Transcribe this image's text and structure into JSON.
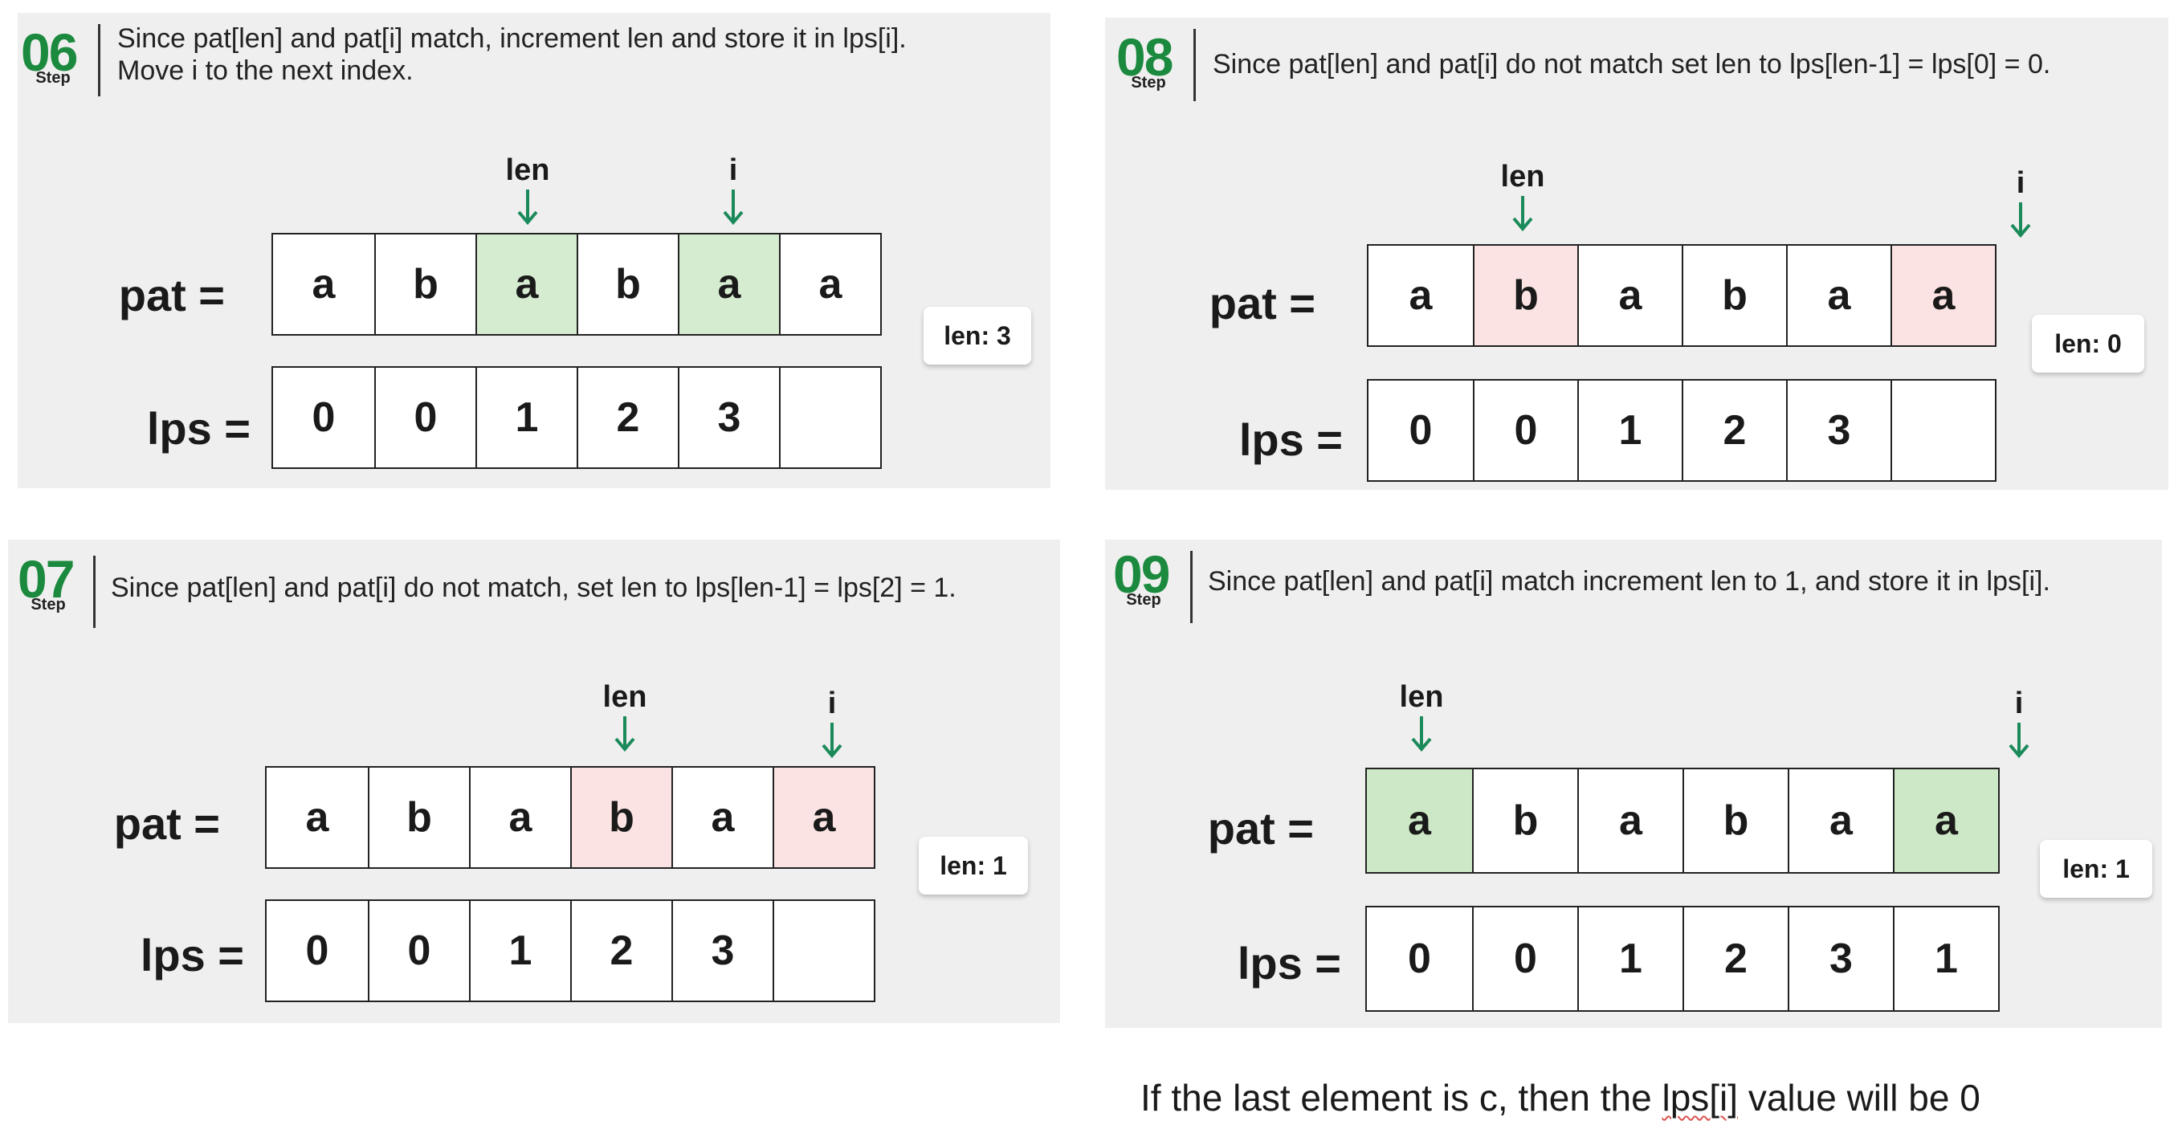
{
  "panels": {
    "p06": {
      "step_number": "06",
      "step_label": "Step",
      "description_lines": [
        "Since pat[len] and pat[i] match, increment len and store it in lps[i].",
        "Move i to the next index."
      ],
      "pat_label": "pat =",
      "lps_label": "lps =",
      "pat": [
        "a",
        "b",
        "a",
        "b",
        "a",
        "a"
      ],
      "pat_highlight": [
        "none",
        "none",
        "green",
        "none",
        "green",
        "none"
      ],
      "lps": [
        "0",
        "0",
        "1",
        "2",
        "3",
        ""
      ],
      "len_pointer": "len",
      "i_pointer": "i",
      "len_pointer_index": 2,
      "i_pointer_index": 4,
      "len_value": "len: 3"
    },
    "p07": {
      "step_number": "07",
      "step_label": "Step",
      "description_lines": [
        "Since pat[len] and pat[i] do not match, set len to lps[len-1] = lps[2] = 1."
      ],
      "pat_label": "pat =",
      "lps_label": "lps =",
      "pat": [
        "a",
        "b",
        "a",
        "b",
        "a",
        "a"
      ],
      "pat_highlight": [
        "none",
        "none",
        "none",
        "red",
        "none",
        "red"
      ],
      "lps": [
        "0",
        "0",
        "1",
        "2",
        "3",
        ""
      ],
      "len_pointer": "len",
      "i_pointer": "i",
      "len_pointer_index": 3,
      "i_pointer_index": 5,
      "len_value": "len: 1"
    },
    "p08": {
      "step_number": "08",
      "step_label": "Step",
      "description_lines": [
        "Since pat[len] and pat[i] do not match set len to lps[len-1] = lps[0] = 0."
      ],
      "pat_label": "pat =",
      "lps_label": "lps =",
      "pat": [
        "a",
        "b",
        "a",
        "b",
        "a",
        "a"
      ],
      "pat_highlight": [
        "none",
        "red",
        "none",
        "none",
        "none",
        "red"
      ],
      "lps": [
        "0",
        "0",
        "1",
        "2",
        "3",
        ""
      ],
      "len_pointer": "len",
      "i_pointer": "i",
      "len_pointer_index": 1,
      "i_pointer_index": 5,
      "len_value": "len: 0"
    },
    "p09": {
      "step_number": "09",
      "step_label": "Step",
      "description_lines": [
        "Since pat[len] and pat[i] match increment len to 1, and store it in lps[i]."
      ],
      "pat_label": "pat =",
      "lps_label": "lps =",
      "pat": [
        "a",
        "b",
        "a",
        "b",
        "a",
        "a"
      ],
      "pat_highlight": [
        "dgreen",
        "none",
        "none",
        "none",
        "none",
        "dgreen"
      ],
      "lps": [
        "0",
        "0",
        "1",
        "2",
        "3",
        "1"
      ],
      "len_pointer": "len",
      "i_pointer": "i",
      "len_pointer_index": 0,
      "i_pointer_index": 5,
      "len_value": "len: 1"
    }
  },
  "note": {
    "before": "If the last element is c, then the ",
    "marked": "lps[i]",
    "after": " value will be 0"
  },
  "colors": {
    "step_green": "#1b8a3e",
    "arrow_green": "#1b8a5a",
    "match_green": "#d6ecd1",
    "mismatch_red": "#fbe3e3",
    "panel_bg": "#efefef"
  }
}
